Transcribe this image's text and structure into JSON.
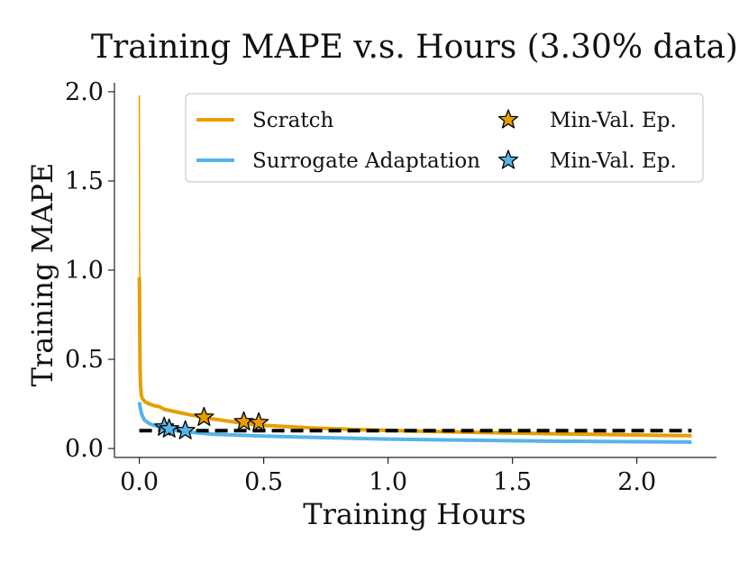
{
  "chart_data": {
    "type": "line",
    "title": "Training MAPE v.s. Hours (3.30% data)",
    "xlabel": "Training Hours",
    "ylabel": "Training MAPE",
    "xlim": [
      -0.1,
      2.32
    ],
    "ylim": [
      -0.05,
      2.05
    ],
    "xticks": [
      0.0,
      0.5,
      1.0,
      1.5,
      2.0
    ],
    "xtick_labels": [
      "0.0",
      "0.5",
      "1.0",
      "1.5",
      "2.0"
    ],
    "yticks": [
      0.0,
      0.5,
      1.0,
      1.5,
      2.0
    ],
    "ytick_labels": [
      "0.0",
      "0.5",
      "1.0",
      "1.5",
      "2.0"
    ],
    "grid": false,
    "legend_position": "top-right",
    "series": [
      {
        "name": "Scratch",
        "color": "#E69F00",
        "x": [
          0.0,
          0.001,
          0.002,
          0.003,
          0.005,
          0.008,
          0.012,
          0.018,
          0.025,
          0.04,
          0.06,
          0.08,
          0.1,
          0.15,
          0.2,
          0.3,
          0.4,
          0.5,
          0.7,
          0.9,
          1.1,
          1.3,
          1.5,
          1.7,
          1.9,
          2.1,
          2.22
        ],
        "values": [
          0.96,
          0.85,
          0.6,
          0.45,
          0.35,
          0.3,
          0.28,
          0.27,
          0.26,
          0.25,
          0.24,
          0.235,
          0.22,
          0.205,
          0.19,
          0.165,
          0.145,
          0.13,
          0.115,
          0.105,
          0.098,
          0.092,
          0.087,
          0.082,
          0.078,
          0.074,
          0.072
        ]
      },
      {
        "name": "Surrogate Adaptation",
        "color": "#56B4E9",
        "x": [
          0.0,
          0.005,
          0.01,
          0.02,
          0.04,
          0.07,
          0.1,
          0.15,
          0.2,
          0.3,
          0.5,
          0.7,
          1.0,
          1.3,
          1.6,
          1.9,
          2.22
        ],
        "values": [
          0.26,
          0.22,
          0.19,
          0.16,
          0.14,
          0.125,
          0.11,
          0.1,
          0.092,
          0.08,
          0.07,
          0.062,
          0.053,
          0.047,
          0.042,
          0.039,
          0.036
        ]
      }
    ],
    "spike": {
      "name": "Scratch initial spike",
      "x": [
        0.0,
        0.0005,
        0.001,
        0.002,
        0.004,
        0.008
      ],
      "values": [
        1.98,
        1.6,
        1.2,
        0.8,
        0.5,
        0.33
      ]
    },
    "min_val_markers": [
      {
        "series": "Scratch",
        "points": [
          [
            0.26,
            0.175
          ],
          [
            0.42,
            0.15
          ],
          [
            0.48,
            0.145
          ]
        ]
      },
      {
        "series": "Surrogate Adaptation",
        "points": [
          [
            0.1,
            0.12
          ],
          [
            0.12,
            0.11
          ],
          [
            0.185,
            0.1
          ]
        ]
      }
    ],
    "reference_line": {
      "y": 0.1,
      "style": "dashed",
      "color": "#000000",
      "x_range": [
        0.0,
        2.22
      ]
    },
    "legend": [
      {
        "label": "Scratch",
        "kind": "line",
        "color": "#E69F00"
      },
      {
        "label": "Min-Val. Ep.",
        "kind": "star",
        "color": "#E69F00"
      },
      {
        "label": "Surrogate Adaptation",
        "kind": "line",
        "color": "#56B4E9"
      },
      {
        "label": "Min-Val. Ep.",
        "kind": "star",
        "color": "#56B4E9"
      }
    ]
  }
}
